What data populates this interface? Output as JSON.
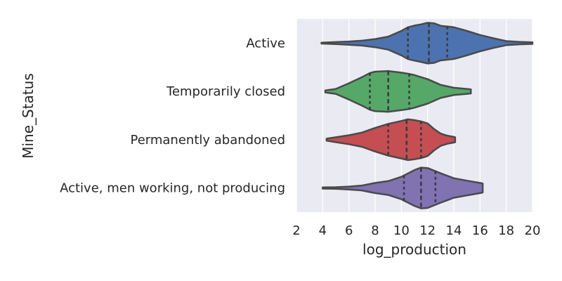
{
  "chart_data": {
    "type": "violin",
    "orientation": "horizontal",
    "title": "",
    "xlabel": "log_production",
    "ylabel": "Mine_Status",
    "xlim": [
      2,
      20
    ],
    "xticks": [
      "2",
      "4",
      "6",
      "8",
      "10",
      "12",
      "14",
      "16",
      "18",
      "20"
    ],
    "grid": true,
    "inner": "quartile",
    "categories": [
      {
        "name": "Active",
        "color": "#4c72b0",
        "min": 3.9,
        "max": 20.0,
        "quartiles": [
          10.5,
          12.1,
          13.5
        ],
        "density": [
          [
            3.9,
            0.02
          ],
          [
            5,
            0.05
          ],
          [
            6,
            0.08
          ],
          [
            7,
            0.12
          ],
          [
            8,
            0.2
          ],
          [
            9,
            0.32
          ],
          [
            10,
            0.6
          ],
          [
            10.5,
            0.78
          ],
          [
            11,
            0.86
          ],
          [
            11.5,
            0.92
          ],
          [
            12,
            1.0
          ],
          [
            12.5,
            0.97
          ],
          [
            13,
            0.85
          ],
          [
            14,
            0.78
          ],
          [
            15,
            0.6
          ],
          [
            16,
            0.4
          ],
          [
            17,
            0.24
          ],
          [
            18,
            0.1
          ],
          [
            19,
            0.06
          ],
          [
            20,
            0.04
          ]
        ]
      },
      {
        "name": "Temporarily closed",
        "color": "#55a868",
        "min": 4.2,
        "max": 15.3,
        "quartiles": [
          7.6,
          9.0,
          10.6
        ],
        "density": [
          [
            4.2,
            0.05
          ],
          [
            5,
            0.12
          ],
          [
            6,
            0.4
          ],
          [
            7,
            0.7
          ],
          [
            7.6,
            0.9
          ],
          [
            8,
            0.97
          ],
          [
            9,
            1.0
          ],
          [
            10,
            0.92
          ],
          [
            10.6,
            0.86
          ],
          [
            11,
            0.8
          ],
          [
            12,
            0.6
          ],
          [
            13,
            0.32
          ],
          [
            14,
            0.18
          ],
          [
            15,
            0.12
          ],
          [
            15.3,
            0.1
          ]
        ]
      },
      {
        "name": "Permanently abandoned",
        "color": "#c44e52",
        "min": 4.3,
        "max": 14.1,
        "quartiles": [
          9.0,
          10.4,
          11.5
        ],
        "density": [
          [
            4.3,
            0.05
          ],
          [
            5,
            0.12
          ],
          [
            6,
            0.22
          ],
          [
            7,
            0.35
          ],
          [
            8,
            0.58
          ],
          [
            9,
            0.78
          ],
          [
            10,
            0.92
          ],
          [
            10.5,
            1.0
          ],
          [
            11,
            0.96
          ],
          [
            11.5,
            0.9
          ],
          [
            12,
            0.8
          ],
          [
            12.5,
            0.52
          ],
          [
            13,
            0.3
          ],
          [
            13.5,
            0.2
          ],
          [
            14,
            0.14
          ],
          [
            14.1,
            0.12
          ]
        ]
      },
      {
        "name": "Active, men working, not producing",
        "color": "#8172b2",
        "min": 4.0,
        "max": 16.2,
        "quartiles": [
          10.2,
          11.5,
          12.6
        ],
        "density": [
          [
            4,
            0.03
          ],
          [
            5,
            0.04
          ],
          [
            6,
            0.07
          ],
          [
            7,
            0.12
          ],
          [
            8,
            0.25
          ],
          [
            9,
            0.34
          ],
          [
            10,
            0.55
          ],
          [
            11,
            0.88
          ],
          [
            11.5,
            1.0
          ],
          [
            12,
            0.98
          ],
          [
            13,
            0.72
          ],
          [
            14,
            0.48
          ],
          [
            15,
            0.36
          ],
          [
            16,
            0.25
          ],
          [
            16.2,
            0.22
          ]
        ]
      }
    ]
  }
}
